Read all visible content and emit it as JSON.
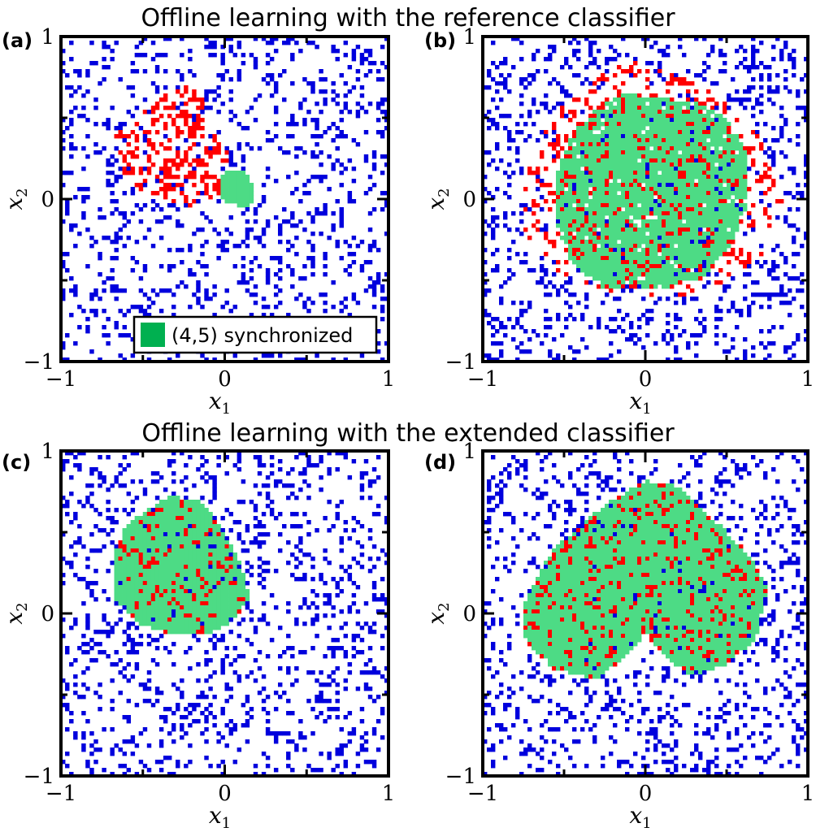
{
  "figure": {
    "titles": [
      "Offline learning with the reference classifier",
      "Offline learning with the extended classifier"
    ]
  },
  "colors": {
    "synchronized": "#4ddb85",
    "legend_swatch": "#00b050",
    "red": "#ff0000",
    "blue": "#0000dd"
  },
  "legend": {
    "label": "(4,5) synchronized",
    "panel": "a"
  },
  "chart_data": [
    {
      "type": "heatmap",
      "panel_label": "(a)",
      "xlabel": "x",
      "xlabel_sub": "1",
      "ylabel": "x",
      "ylabel_sub": "2",
      "xlim": [
        -1,
        1
      ],
      "ylim": [
        -1,
        1
      ],
      "x_ticks": [
        "−1",
        "0",
        "1"
      ],
      "y_ticks": [
        "−1",
        "0",
        "1"
      ],
      "grid": false,
      "seed": 11,
      "synchronized_region": [
        [
          0.0,
          0.18
        ],
        [
          0.12,
          0.18
        ],
        [
          0.18,
          0.08
        ],
        [
          0.18,
          -0.02
        ],
        [
          0.12,
          -0.05
        ],
        [
          0.0,
          -0.02
        ],
        [
          -0.04,
          0.08
        ]
      ],
      "red_region": [
        [
          -0.7,
          0.35
        ],
        [
          -0.55,
          0.5
        ],
        [
          -0.35,
          0.65
        ],
        [
          -0.2,
          0.72
        ],
        [
          -0.1,
          0.55
        ],
        [
          0.0,
          0.35
        ],
        [
          0.05,
          0.15
        ],
        [
          -0.05,
          0.0
        ],
        [
          -0.25,
          -0.05
        ],
        [
          -0.45,
          0.0
        ],
        [
          -0.65,
          0.15
        ]
      ],
      "green_density": 1.0,
      "red_density": 0.35,
      "blue_density": 0.17
    },
    {
      "type": "heatmap",
      "panel_label": "(b)",
      "xlabel": "x",
      "xlabel_sub": "1",
      "ylabel": "x",
      "ylabel_sub": "2",
      "xlim": [
        -1,
        1
      ],
      "ylim": [
        -1,
        1
      ],
      "x_ticks": [
        "−1",
        "0",
        "1"
      ],
      "y_ticks": [
        "−1",
        "0",
        "1"
      ],
      "grid": false,
      "seed": 23,
      "synchronized_region": [
        [
          -0.3,
          0.55
        ],
        [
          -0.15,
          0.65
        ],
        [
          0.1,
          0.62
        ],
        [
          0.3,
          0.6
        ],
        [
          0.5,
          0.5
        ],
        [
          0.62,
          0.3
        ],
        [
          0.62,
          -0.05
        ],
        [
          0.52,
          -0.3
        ],
        [
          0.35,
          -0.48
        ],
        [
          0.1,
          -0.55
        ],
        [
          -0.25,
          -0.55
        ],
        [
          -0.45,
          -0.4
        ],
        [
          -0.55,
          -0.15
        ],
        [
          -0.55,
          0.15
        ],
        [
          -0.45,
          0.4
        ]
      ],
      "red_region": [
        [
          -0.75,
          0.1
        ],
        [
          -0.6,
          0.5
        ],
        [
          -0.3,
          0.75
        ],
        [
          -0.1,
          0.9
        ],
        [
          0.1,
          0.8
        ],
        [
          0.45,
          0.65
        ],
        [
          0.7,
          0.4
        ],
        [
          0.85,
          0.0
        ],
        [
          0.75,
          -0.3
        ],
        [
          0.6,
          -0.45
        ],
        [
          0.3,
          -0.6
        ],
        [
          -0.2,
          -0.6
        ],
        [
          -0.55,
          -0.45
        ],
        [
          -0.75,
          -0.2
        ]
      ],
      "green_density": 0.78,
      "red_density": 0.22,
      "blue_density": 0.17
    },
    {
      "type": "heatmap",
      "panel_label": "(c)",
      "xlabel": "x",
      "xlabel_sub": "1",
      "ylabel": "x",
      "ylabel_sub": "2",
      "xlim": [
        -1,
        1
      ],
      "ylim": [
        -1,
        1
      ],
      "x_ticks": [
        "−1",
        "0",
        "1"
      ],
      "y_ticks": [
        "−1",
        "0",
        "1"
      ],
      "grid": false,
      "seed": 37,
      "synchronized_region": [
        [
          -0.6,
          0.55
        ],
        [
          -0.35,
          0.72
        ],
        [
          -0.15,
          0.7
        ],
        [
          0.0,
          0.5
        ],
        [
          0.1,
          0.3
        ],
        [
          0.15,
          0.1
        ],
        [
          0.05,
          -0.05
        ],
        [
          -0.1,
          -0.12
        ],
        [
          -0.35,
          -0.12
        ],
        [
          -0.55,
          -0.05
        ],
        [
          -0.68,
          0.1
        ],
        [
          -0.68,
          0.35
        ]
      ],
      "red_region": [
        [
          -0.6,
          0.55
        ],
        [
          -0.35,
          0.72
        ],
        [
          -0.15,
          0.7
        ],
        [
          0.0,
          0.5
        ],
        [
          0.1,
          0.3
        ],
        [
          0.15,
          0.1
        ],
        [
          0.05,
          -0.05
        ],
        [
          -0.1,
          -0.12
        ],
        [
          -0.35,
          -0.12
        ],
        [
          -0.55,
          -0.05
        ],
        [
          -0.68,
          0.1
        ],
        [
          -0.68,
          0.35
        ]
      ],
      "green_density": 0.82,
      "red_density": 0.18,
      "blue_density": 0.17
    },
    {
      "type": "heatmap",
      "panel_label": "(d)",
      "xlabel": "x",
      "xlabel_sub": "1",
      "ylabel": "x",
      "ylabel_sub": "2",
      "xlim": [
        -1,
        1
      ],
      "ylim": [
        -1,
        1
      ],
      "x_ticks": [
        "−1",
        "0",
        "1"
      ],
      "y_ticks": [
        "−1",
        "0",
        "1"
      ],
      "grid": false,
      "seed": 51,
      "synchronized_region": [
        [
          -0.6,
          0.35
        ],
        [
          -0.4,
          0.55
        ],
        [
          -0.2,
          0.7
        ],
        [
          0.0,
          0.82
        ],
        [
          0.2,
          0.78
        ],
        [
          0.45,
          0.55
        ],
        [
          0.65,
          0.35
        ],
        [
          0.75,
          0.15
        ],
        [
          0.68,
          -0.15
        ],
        [
          0.5,
          -0.32
        ],
        [
          0.28,
          -0.38
        ],
        [
          0.1,
          -0.25
        ],
        [
          0.0,
          -0.12
        ],
        [
          -0.1,
          -0.25
        ],
        [
          -0.3,
          -0.4
        ],
        [
          -0.55,
          -0.35
        ],
        [
          -0.75,
          -0.15
        ],
        [
          -0.75,
          0.05
        ]
      ],
      "red_region": [
        [
          -0.6,
          0.35
        ],
        [
          -0.4,
          0.55
        ],
        [
          -0.2,
          0.7
        ],
        [
          0.0,
          0.82
        ],
        [
          0.2,
          0.78
        ],
        [
          0.45,
          0.55
        ],
        [
          0.65,
          0.35
        ],
        [
          0.75,
          0.15
        ],
        [
          0.68,
          -0.15
        ],
        [
          0.5,
          -0.32
        ],
        [
          0.28,
          -0.38
        ],
        [
          0.1,
          -0.25
        ],
        [
          0.0,
          -0.12
        ],
        [
          -0.1,
          -0.25
        ],
        [
          -0.3,
          -0.4
        ],
        [
          -0.55,
          -0.35
        ],
        [
          -0.75,
          -0.15
        ],
        [
          -0.75,
          0.05
        ]
      ],
      "green_density": 0.84,
      "red_density": 0.16,
      "blue_density": 0.17
    }
  ]
}
